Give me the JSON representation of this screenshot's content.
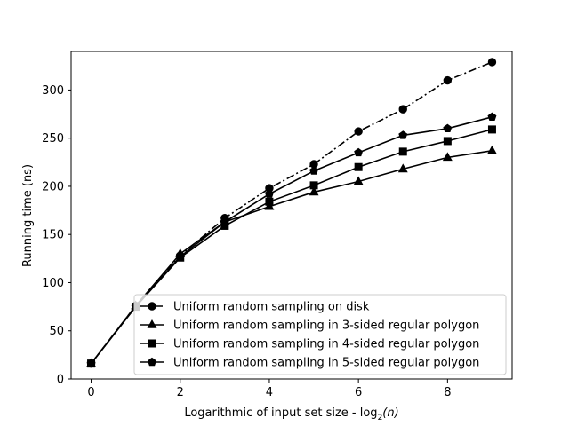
{
  "chart_data": {
    "type": "line",
    "xlabel": "Logarithmic of input set size - log",
    "xlabel_sub": "2",
    "xlabel_tail": "(n)",
    "ylabel": "Running time (ns)",
    "xlim": [
      -0.45,
      9.45
    ],
    "ylim": [
      0,
      340
    ],
    "xticks": [
      0,
      2,
      4,
      6,
      8
    ],
    "yticks": [
      0,
      50,
      100,
      150,
      200,
      250,
      300
    ],
    "grid": false,
    "legend_position": "lower right",
    "x": [
      0,
      1,
      2,
      3,
      4,
      5,
      6,
      7,
      8,
      9
    ],
    "series": [
      {
        "name": "Uniform random sampling on disk",
        "marker": "circle",
        "linestyle": "dashdot",
        "values": [
          16,
          76,
          128,
          167,
          198,
          223,
          257,
          280,
          310,
          329
        ]
      },
      {
        "name": "Uniform random sampling in 3-sided regular polygon",
        "marker": "triangle",
        "linestyle": "solid",
        "values": [
          16,
          76,
          130,
          163,
          179,
          194,
          205,
          218,
          230,
          237
        ]
      },
      {
        "name": "Uniform random sampling in 4-sided regular polygon",
        "marker": "square",
        "linestyle": "solid",
        "values": [
          16,
          75,
          126,
          159,
          184,
          201,
          220,
          236,
          247,
          259
        ]
      },
      {
        "name": "Uniform random sampling in 5-sided regular polygon",
        "marker": "pentagon",
        "linestyle": "solid",
        "values": [
          16,
          75,
          127,
          163,
          192,
          216,
          235,
          253,
          260,
          272
        ]
      }
    ],
    "color": "#000000"
  }
}
